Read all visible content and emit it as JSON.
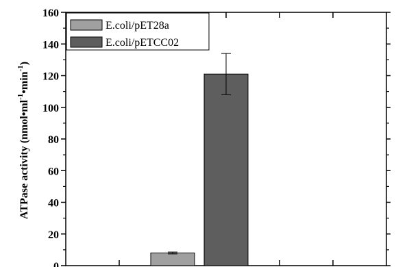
{
  "chart_data": {
    "type": "bar",
    "ylabel_main": "ATPase activity (nmol",
    "ylabel_mid1": "ml",
    "ylabel_mid2": "min",
    "ylabel_end": ")",
    "ylabel_sup": "-1",
    "ylim": [
      0,
      160
    ],
    "y_ticks": [
      "0",
      "20",
      "40",
      "60",
      "80",
      "100",
      "120",
      "140",
      "160"
    ],
    "grid": false,
    "legend_position": "top-left",
    "series": [
      {
        "name": "E.coli/pET28a",
        "value": 8,
        "error": 0.6,
        "color": "#a0a0a0"
      },
      {
        "name": "E.coli/pETCC02",
        "value": 121,
        "error": 13,
        "color": "#5e5e5e"
      }
    ]
  }
}
